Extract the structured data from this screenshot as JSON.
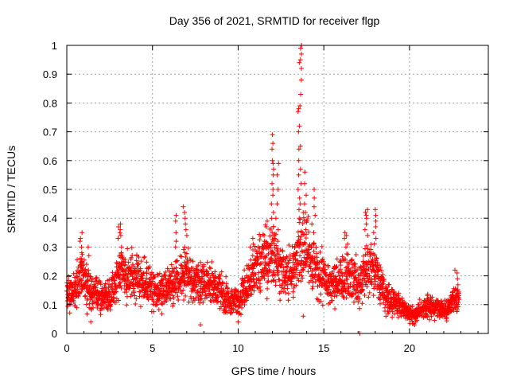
{
  "chart_data": {
    "type": "scatter",
    "title": "Day 356 of 2021, SRMTID for receiver flgp",
    "xlabel": "GPS time / hours",
    "ylabel": "SRMTID / TECUs",
    "xlim": [
      0,
      24.6
    ],
    "ylim": [
      0,
      1
    ],
    "x_ticks": [
      0,
      5,
      10,
      15,
      20
    ],
    "y_ticks": [
      0,
      0.1,
      0.2,
      0.3,
      0.4,
      0.5,
      0.6,
      0.7,
      0.8,
      0.9,
      1
    ],
    "x_tick_labels": [
      "0",
      "5",
      "10",
      "15",
      "20"
    ],
    "y_tick_labels": [
      "0",
      "0.1",
      "0.2",
      "0.3",
      "0.4",
      "0.5",
      "0.6",
      "0.7",
      "0.8",
      "0.9",
      "1"
    ],
    "grid": true,
    "marker": "+",
    "color": "#ff0000",
    "profile": [
      [
        0,
        0.13
      ],
      [
        0.5,
        0.15
      ],
      [
        0.9,
        0.21
      ],
      [
        1.3,
        0.14
      ],
      [
        1.8,
        0.13
      ],
      [
        2.3,
        0.13
      ],
      [
        2.8,
        0.17
      ],
      [
        3.2,
        0.22
      ],
      [
        3.7,
        0.2
      ],
      [
        4.2,
        0.19
      ],
      [
        4.7,
        0.17
      ],
      [
        5.2,
        0.14
      ],
      [
        5.7,
        0.16
      ],
      [
        6.2,
        0.17
      ],
      [
        6.7,
        0.2
      ],
      [
        7.2,
        0.2
      ],
      [
        7.7,
        0.17
      ],
      [
        8.2,
        0.18
      ],
      [
        8.7,
        0.16
      ],
      [
        9.2,
        0.14
      ],
      [
        9.6,
        0.11
      ],
      [
        10.1,
        0.12
      ],
      [
        10.5,
        0.17
      ],
      [
        10.9,
        0.22
      ],
      [
        11.3,
        0.24
      ],
      [
        11.7,
        0.26
      ],
      [
        12.1,
        0.27
      ],
      [
        12.5,
        0.21
      ],
      [
        12.9,
        0.2
      ],
      [
        13.3,
        0.22
      ],
      [
        13.6,
        0.3
      ],
      [
        14.0,
        0.28
      ],
      [
        14.4,
        0.24
      ],
      [
        14.8,
        0.2
      ],
      [
        15.2,
        0.18
      ],
      [
        15.6,
        0.17
      ],
      [
        16.0,
        0.19
      ],
      [
        16.5,
        0.2
      ],
      [
        17.0,
        0.17
      ],
      [
        17.4,
        0.21
      ],
      [
        17.8,
        0.24
      ],
      [
        18.2,
        0.18
      ],
      [
        18.6,
        0.13
      ],
      [
        19.0,
        0.11
      ],
      [
        19.4,
        0.1
      ],
      [
        19.8,
        0.08
      ],
      [
        20.2,
        0.06
      ],
      [
        20.6,
        0.08
      ],
      [
        21.0,
        0.09
      ],
      [
        21.4,
        0.09
      ],
      [
        21.8,
        0.09
      ],
      [
        22.2,
        0.08
      ],
      [
        22.7,
        0.12
      ]
    ],
    "peaks": [
      {
        "x": 0.8,
        "values": [
          0.35,
          0.33,
          0.32,
          0.3,
          0.28,
          0.26,
          0.25,
          0.24,
          0.23,
          0.22
        ]
      },
      {
        "x": 1.2,
        "values": [
          0.3,
          0.27,
          0.24,
          0.22
        ]
      },
      {
        "x": 3.1,
        "values": [
          0.38,
          0.37,
          0.36,
          0.35,
          0.34,
          0.33,
          0.3,
          0.28
        ]
      },
      {
        "x": 6.9,
        "values": [
          0.44,
          0.42,
          0.4,
          0.38,
          0.36,
          0.34,
          0.3,
          0.28
        ]
      },
      {
        "x": 6.4,
        "values": [
          0.41,
          0.39,
          0.35,
          0.32,
          0.3
        ]
      },
      {
        "x": 10.8,
        "values": [
          0.33,
          0.31,
          0.3,
          0.29,
          0.27
        ]
      },
      {
        "x": 11.6,
        "values": [
          0.39,
          0.37,
          0.34,
          0.32,
          0.3
        ]
      },
      {
        "x": 12.0,
        "values": [
          0.69,
          0.66,
          0.64,
          0.6,
          0.59,
          0.57,
          0.55,
          0.52,
          0.5,
          0.48,
          0.45,
          0.42,
          0.4,
          0.37,
          0.35,
          0.33
        ]
      },
      {
        "x": 12.3,
        "values": [
          0.59,
          0.55,
          0.5,
          0.45,
          0.4,
          0.36,
          0.32
        ]
      },
      {
        "x": 13.6,
        "values": [
          1.0,
          0.99,
          0.97,
          0.95,
          0.94,
          0.92,
          0.88,
          0.83,
          0.79,
          0.78,
          0.77,
          0.72,
          0.7,
          0.65,
          0.64,
          0.6,
          0.57,
          0.55,
          0.52,
          0.5,
          0.47,
          0.45,
          0.43,
          0.4
        ]
      },
      {
        "x": 13.9,
        "values": [
          0.56,
          0.52,
          0.48,
          0.45,
          0.42,
          0.39,
          0.36
        ]
      },
      {
        "x": 14.4,
        "values": [
          0.5,
          0.47,
          0.44,
          0.41,
          0.38,
          0.35
        ]
      },
      {
        "x": 16.3,
        "values": [
          0.35,
          0.34,
          0.33,
          0.31,
          0.3
        ]
      },
      {
        "x": 17.5,
        "values": [
          0.43,
          0.42,
          0.41,
          0.4,
          0.38,
          0.36,
          0.34
        ]
      },
      {
        "x": 18.0,
        "values": [
          0.43,
          0.41,
          0.39,
          0.37,
          0.35,
          0.33
        ]
      },
      {
        "x": 22.7,
        "values": [
          0.22,
          0.21,
          0.19
        ]
      }
    ],
    "outliers": [
      [
        1.4,
        0.04
      ],
      [
        7.8,
        0.03
      ],
      [
        10.0,
        0.04
      ],
      [
        13.8,
        0.06
      ],
      [
        17.1,
        0.0
      ],
      [
        20.3,
        0.03
      ]
    ]
  }
}
